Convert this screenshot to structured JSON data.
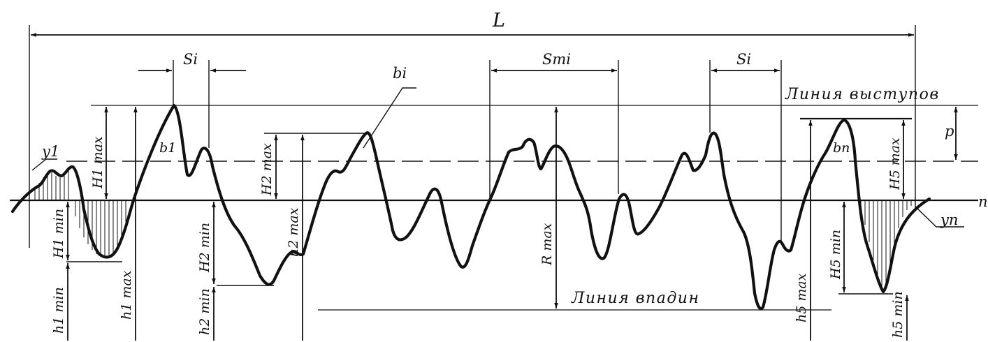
{
  "labels": {
    "L": "L",
    "S_left": "Si",
    "S_mid": "Smi",
    "S_right": "Si",
    "b_i": "bi",
    "b_1": "b1",
    "b_n": "bn",
    "y_1": "y1",
    "y_n": "yn",
    "n": "n",
    "p": "p",
    "line_peaks": "Линия выступов",
    "line_valleys": "Линия впадин",
    "H1max": "H1 max",
    "H1min": "H1 min",
    "h1min": "h1 min",
    "h1max": "h1 max",
    "H2max": "H2 max",
    "H2min": "H2 min",
    "h2min": "h2 min",
    "h2max": "h2 max",
    "Rmax": "R max",
    "H5max": "H5 max",
    "H5min": "H5 min",
    "h5max": "h5 max",
    "h5min": "h5 min"
  }
}
